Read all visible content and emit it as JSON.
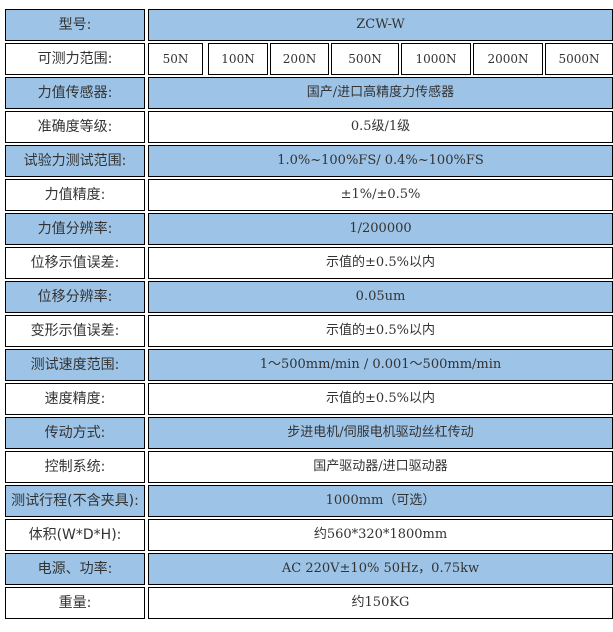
{
  "colors": {
    "highlight": "#9dc3e6",
    "border": "#000000"
  },
  "rows": [
    {
      "label": "型号:",
      "value": "ZCW-W",
      "blue": true
    },
    {
      "label": "可测力范围:",
      "ranges": [
        "50N",
        "100N",
        "200N",
        "500N",
        "1000N",
        "2000N",
        "5000N"
      ],
      "blue": false
    },
    {
      "label": "力值传感器:",
      "value": "国产/进口高精度力传感器",
      "blue": true
    },
    {
      "label": "准确度等级:",
      "value": "0.5级/1级",
      "blue": false
    },
    {
      "label": "试验力测试范围:",
      "value": "1.0%~100%FS/ 0.4%~100%FS",
      "blue": true
    },
    {
      "label": "力值精度:",
      "value": "±1%/±0.5%",
      "blue": false
    },
    {
      "label": "力值分辨率:",
      "value": "1/200000",
      "blue": true
    },
    {
      "label": "位移示值误差:",
      "value": "示值的±0.5%以内",
      "blue": false
    },
    {
      "label": "位移分辨率:",
      "value": "0.05um",
      "blue": true
    },
    {
      "label": "变形示值误差:",
      "value": "示值的±0.5%以内",
      "blue": false
    },
    {
      "label": "测试速度范围:",
      "value": "1～500mm/min / 0.001～500mm/min",
      "blue": true
    },
    {
      "label": "速度精度:",
      "value": "示值的±0.5%以内",
      "blue": false
    },
    {
      "label": "传动方式:",
      "value": "步进电机/伺服电机驱动丝杠传动",
      "blue": true
    },
    {
      "label": "控制系统:",
      "value": "国产驱动器/进口驱动器",
      "blue": false
    },
    {
      "label": "测试行程(不含夹具):",
      "value": "1000mm（可选）",
      "blue": true
    },
    {
      "label": "体积(W*D*H):",
      "value": "约560*320*1800mm",
      "blue": false
    },
    {
      "label": "电源、功率:",
      "value": "AC 220V±10% 50Hz，0.75kw",
      "blue": true
    },
    {
      "label": "重量:",
      "value": "约150KG",
      "blue": false
    }
  ]
}
